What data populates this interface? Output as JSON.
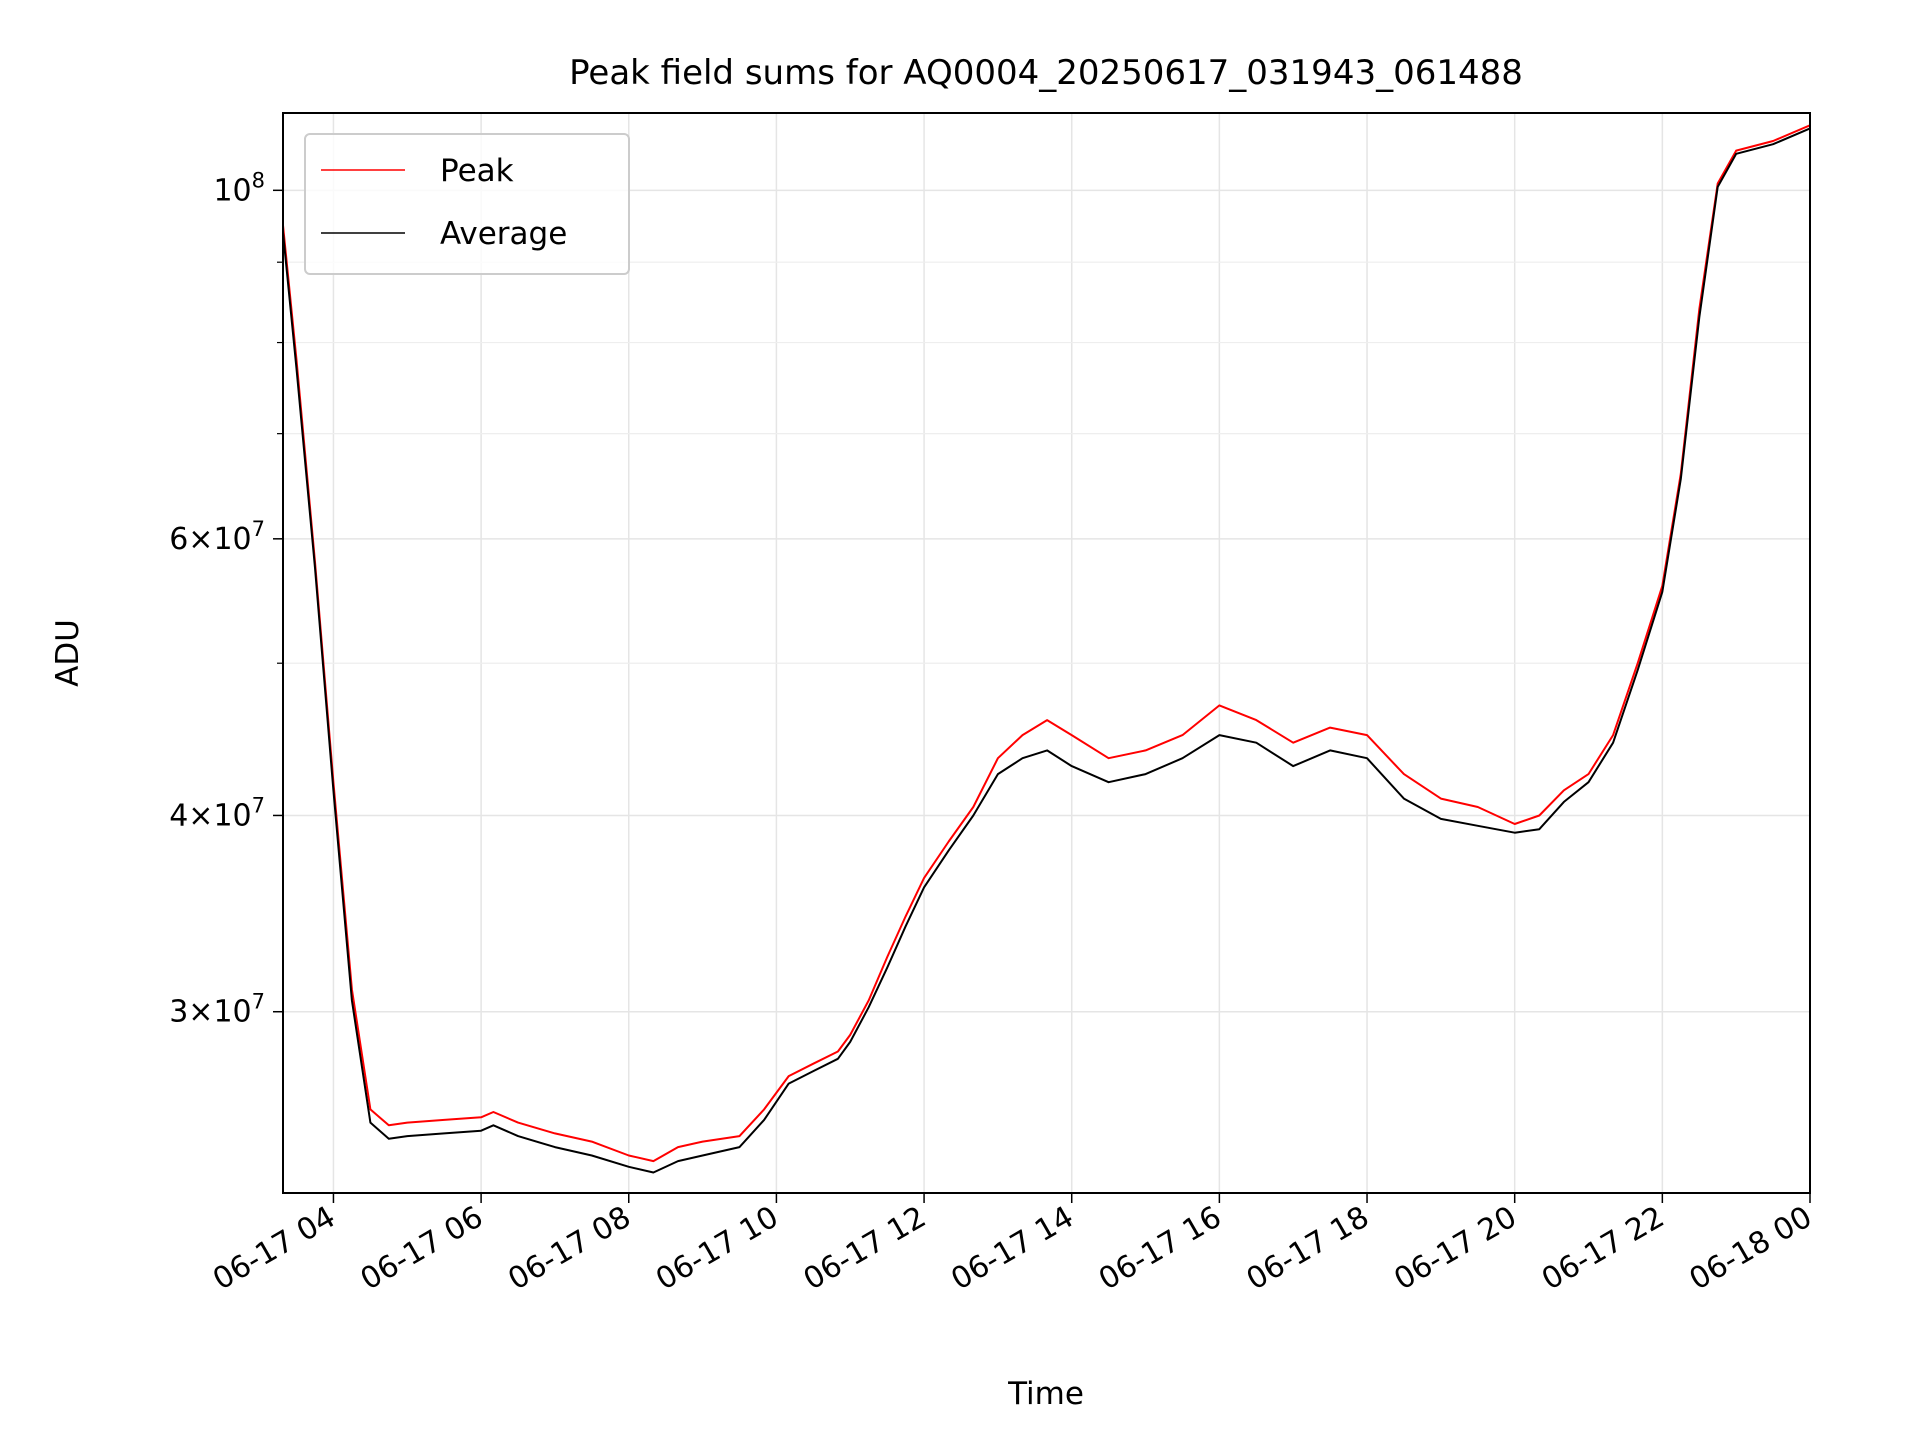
{
  "chart_data": {
    "type": "line",
    "title": "Peak field sums for AQ0004_20250617_031943_061488",
    "xlabel": "Time",
    "ylabel": "ADU",
    "xlim": [
      "2025-06-17 03:19",
      "2025-06-18 00:00"
    ],
    "ylim": [
      23000000,
      112000000
    ],
    "y_scale": "log",
    "grid": true,
    "legend_position": "top-left",
    "x_ticks": [
      {
        "label": "06-17 04",
        "t": "2025-06-17 04:00"
      },
      {
        "label": "06-17 06",
        "t": "2025-06-17 06:00"
      },
      {
        "label": "06-17 08",
        "t": "2025-06-17 08:00"
      },
      {
        "label": "06-17 10",
        "t": "2025-06-17 10:00"
      },
      {
        "label": "06-17 12",
        "t": "2025-06-17 12:00"
      },
      {
        "label": "06-17 14",
        "t": "2025-06-17 14:00"
      },
      {
        "label": "06-17 16",
        "t": "2025-06-17 16:00"
      },
      {
        "label": "06-17 18",
        "t": "2025-06-17 18:00"
      },
      {
        "label": "06-17 20",
        "t": "2025-06-17 20:00"
      },
      {
        "label": "06-17 22",
        "t": "2025-06-17 22:00"
      },
      {
        "label": "06-18 00",
        "t": "2025-06-18 00:00"
      }
    ],
    "y_major_ticks": [
      {
        "value": 30000000,
        "mantissa": "3",
        "base": "10",
        "exp": "7"
      },
      {
        "value": 40000000,
        "mantissa": "4",
        "base": "10",
        "exp": "7"
      },
      {
        "value": 60000000,
        "mantissa": "6",
        "base": "10",
        "exp": "7"
      },
      {
        "value": 100000000,
        "mantissa": "",
        "base": "10",
        "exp": "8"
      }
    ],
    "y_minor_ticks": [
      50000000,
      70000000,
      80000000,
      90000000
    ],
    "series": [
      {
        "name": "Peak",
        "color": "#ff0000",
        "x": [
          "2025-06-17 03:19",
          "2025-06-17 03:30",
          "2025-06-17 03:45",
          "2025-06-17 04:00",
          "2025-06-17 04:15",
          "2025-06-17 04:30",
          "2025-06-17 04:45",
          "2025-06-17 05:00",
          "2025-06-17 05:30",
          "2025-06-17 06:00",
          "2025-06-17 06:10",
          "2025-06-17 06:30",
          "2025-06-17 07:00",
          "2025-06-17 07:30",
          "2025-06-17 08:00",
          "2025-06-17 08:20",
          "2025-06-17 08:40",
          "2025-06-17 09:00",
          "2025-06-17 09:30",
          "2025-06-17 09:50",
          "2025-06-17 10:10",
          "2025-06-17 10:30",
          "2025-06-17 10:50",
          "2025-06-17 11:00",
          "2025-06-17 11:15",
          "2025-06-17 11:30",
          "2025-06-17 11:45",
          "2025-06-17 12:00",
          "2025-06-17 12:20",
          "2025-06-17 12:40",
          "2025-06-17 13:00",
          "2025-06-17 13:20",
          "2025-06-17 13:40",
          "2025-06-17 14:00",
          "2025-06-17 14:30",
          "2025-06-17 15:00",
          "2025-06-17 15:30",
          "2025-06-17 16:00",
          "2025-06-17 16:30",
          "2025-06-17 17:00",
          "2025-06-17 17:30",
          "2025-06-17 18:00",
          "2025-06-17 18:30",
          "2025-06-17 19:00",
          "2025-06-17 19:30",
          "2025-06-17 20:00",
          "2025-06-17 20:20",
          "2025-06-17 20:40",
          "2025-06-17 21:00",
          "2025-06-17 21:20",
          "2025-06-17 21:40",
          "2025-06-17 22:00",
          "2025-06-17 22:15",
          "2025-06-17 22:30",
          "2025-06-17 22:45",
          "2025-06-17 23:00",
          "2025-06-17 23:30",
          "2025-06-18 00:00"
        ],
        "values": [
          95000000,
          78000000,
          58000000,
          42000000,
          31000000,
          26000000,
          25400000,
          25500000,
          25600000,
          25700000,
          25900000,
          25500000,
          25100000,
          24800000,
          24300000,
          24100000,
          24600000,
          24800000,
          25000000,
          26000000,
          27300000,
          27800000,
          28300000,
          29000000,
          30500000,
          32500000,
          34500000,
          36500000,
          38500000,
          40500000,
          43500000,
          45000000,
          46000000,
          45000000,
          43500000,
          44000000,
          45000000,
          47000000,
          46000000,
          44500000,
          45500000,
          45000000,
          42500000,
          41000000,
          40500000,
          39500000,
          40000000,
          41500000,
          42500000,
          45000000,
          50000000,
          56000000,
          66000000,
          84000000,
          101000000,
          106000000,
          107500000,
          110000000
        ]
      },
      {
        "name": "Average",
        "color": "#000000",
        "x": [
          "2025-06-17 03:19",
          "2025-06-17 03:30",
          "2025-06-17 03:45",
          "2025-06-17 04:00",
          "2025-06-17 04:15",
          "2025-06-17 04:30",
          "2025-06-17 04:45",
          "2025-06-17 05:00",
          "2025-06-17 05:30",
          "2025-06-17 06:00",
          "2025-06-17 06:10",
          "2025-06-17 06:30",
          "2025-06-17 07:00",
          "2025-06-17 07:30",
          "2025-06-17 08:00",
          "2025-06-17 08:20",
          "2025-06-17 08:40",
          "2025-06-17 09:00",
          "2025-06-17 09:30",
          "2025-06-17 09:50",
          "2025-06-17 10:10",
          "2025-06-17 10:30",
          "2025-06-17 10:50",
          "2025-06-17 11:00",
          "2025-06-17 11:15",
          "2025-06-17 11:30",
          "2025-06-17 11:45",
          "2025-06-17 12:00",
          "2025-06-17 12:20",
          "2025-06-17 12:40",
          "2025-06-17 13:00",
          "2025-06-17 13:20",
          "2025-06-17 13:40",
          "2025-06-17 14:00",
          "2025-06-17 14:30",
          "2025-06-17 15:00",
          "2025-06-17 15:30",
          "2025-06-17 16:00",
          "2025-06-17 16:30",
          "2025-06-17 17:00",
          "2025-06-17 17:30",
          "2025-06-17 18:00",
          "2025-06-17 18:30",
          "2025-06-17 19:00",
          "2025-06-17 19:30",
          "2025-06-17 20:00",
          "2025-06-17 20:20",
          "2025-06-17 20:40",
          "2025-06-17 21:00",
          "2025-06-17 21:20",
          "2025-06-17 21:40",
          "2025-06-17 22:00",
          "2025-06-17 22:15",
          "2025-06-17 22:30",
          "2025-06-17 22:45",
          "2025-06-17 23:00",
          "2025-06-17 23:30",
          "2025-06-18 00:00"
        ],
        "values": [
          94000000,
          77000000,
          57500000,
          41500000,
          30500000,
          25500000,
          24900000,
          25000000,
          25100000,
          25200000,
          25400000,
          25000000,
          24600000,
          24300000,
          23900000,
          23700000,
          24100000,
          24300000,
          24600000,
          25600000,
          27000000,
          27500000,
          28000000,
          28700000,
          30200000,
          32000000,
          34000000,
          36000000,
          38000000,
          40000000,
          42500000,
          43500000,
          44000000,
          43000000,
          42000000,
          42500000,
          43500000,
          45000000,
          44500000,
          43000000,
          44000000,
          43500000,
          41000000,
          39800000,
          39400000,
          39000000,
          39200000,
          40800000,
          42000000,
          44500000,
          49500000,
          55500000,
          65500000,
          83000000,
          100500000,
          105500000,
          107000000,
          109500000
        ]
      }
    ]
  }
}
